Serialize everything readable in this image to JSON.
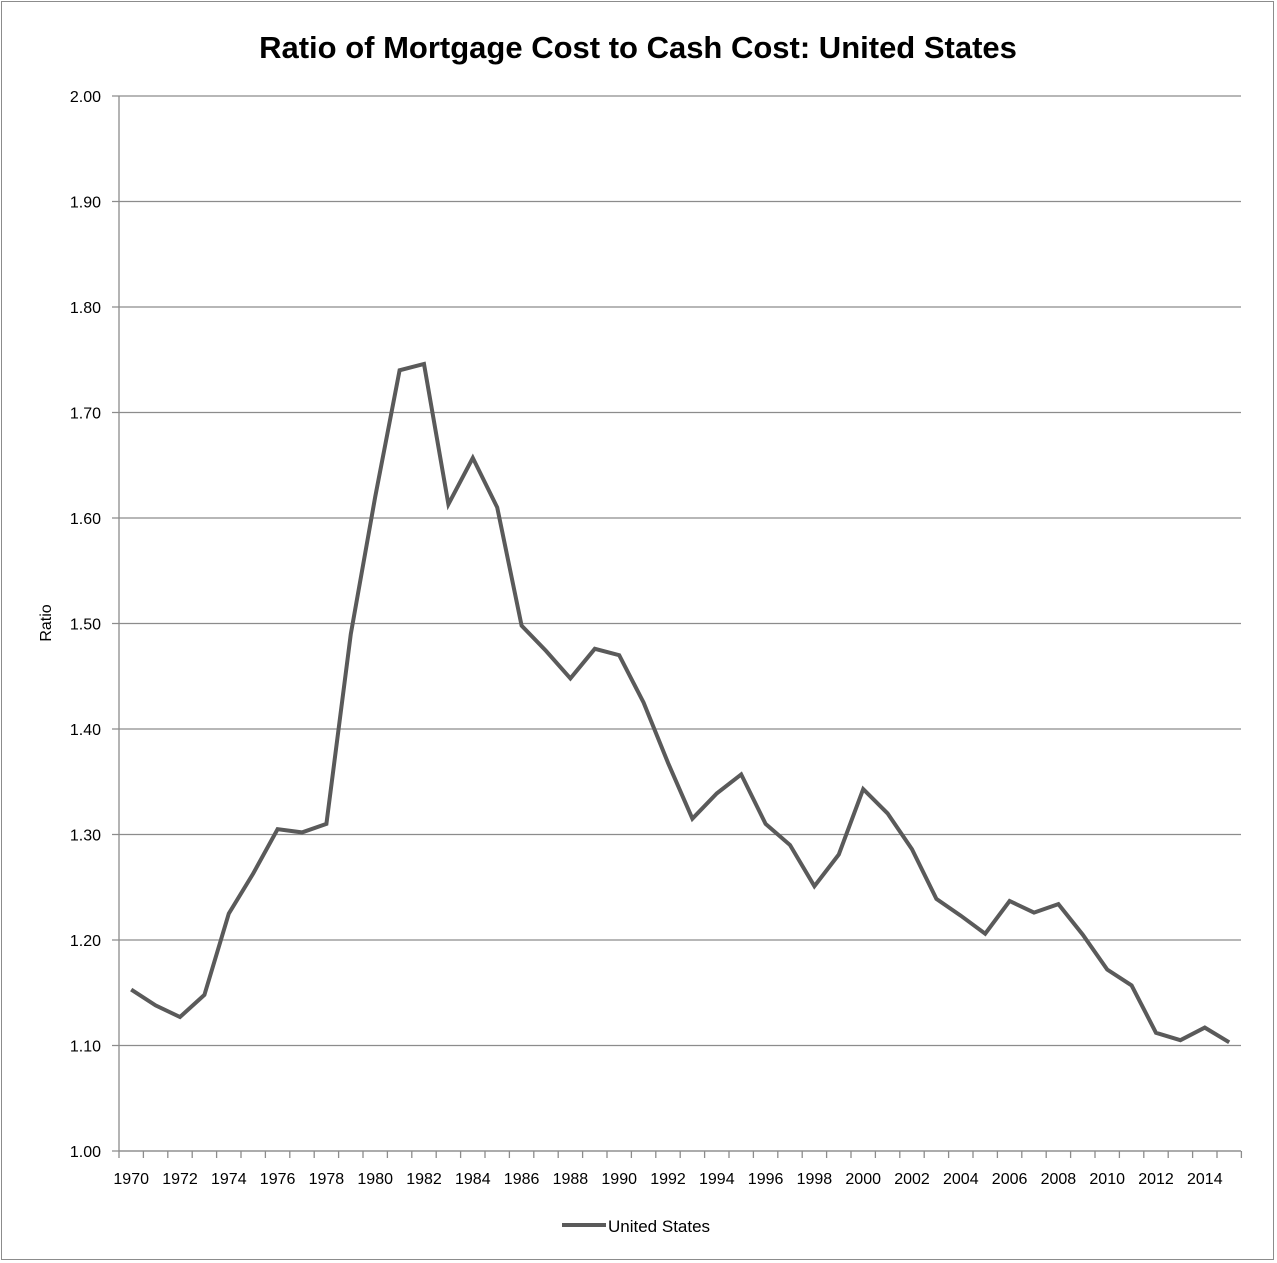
{
  "chart_data": {
    "type": "line",
    "title": "Ratio of Mortgage Cost to Cash Cost: United States",
    "xlabel": "",
    "ylabel": "Ratio",
    "ylim": [
      1.0,
      2.0
    ],
    "yticks": [
      "1.00",
      "1.10",
      "1.20",
      "1.30",
      "1.40",
      "1.50",
      "1.60",
      "1.70",
      "1.80",
      "1.90",
      "2.00"
    ],
    "xticks": [
      "1970",
      "1972",
      "1974",
      "1976",
      "1978",
      "1980",
      "1982",
      "1984",
      "1986",
      "1988",
      "1990",
      "1992",
      "1994",
      "1996",
      "1998",
      "2000",
      "2002",
      "2004",
      "2006",
      "2008",
      "2010",
      "2012",
      "2014"
    ],
    "grid": true,
    "legend": "bottom",
    "colors": {
      "line": "#5a5a5a",
      "grid": "#8c8c8c"
    },
    "x": [
      1970,
      1971,
      1972,
      1973,
      1974,
      1975,
      1976,
      1977,
      1978,
      1979,
      1980,
      1981,
      1982,
      1983,
      1984,
      1985,
      1986,
      1987,
      1988,
      1989,
      1990,
      1991,
      1992,
      1993,
      1994,
      1995,
      1996,
      1997,
      1998,
      1999,
      2000,
      2001,
      2002,
      2003,
      2004,
      2005,
      2006,
      2007,
      2008,
      2009,
      2010,
      2011,
      2012,
      2013,
      2014,
      2015
    ],
    "series": [
      {
        "name": "United States",
        "values": [
          1.153,
          1.138,
          1.127,
          1.148,
          1.225,
          1.263,
          1.305,
          1.302,
          1.31,
          1.49,
          1.62,
          1.74,
          1.746,
          1.613,
          1.657,
          1.61,
          1.498,
          1.474,
          1.448,
          1.476,
          1.47,
          1.425,
          1.368,
          1.315,
          1.339,
          1.357,
          1.31,
          1.29,
          1.251,
          1.281,
          1.343,
          1.32,
          1.286,
          1.239,
          1.223,
          1.206,
          1.237,
          1.226,
          1.234,
          1.205,
          1.172,
          1.157,
          1.112,
          1.105,
          1.117,
          1.103
        ]
      }
    ]
  }
}
